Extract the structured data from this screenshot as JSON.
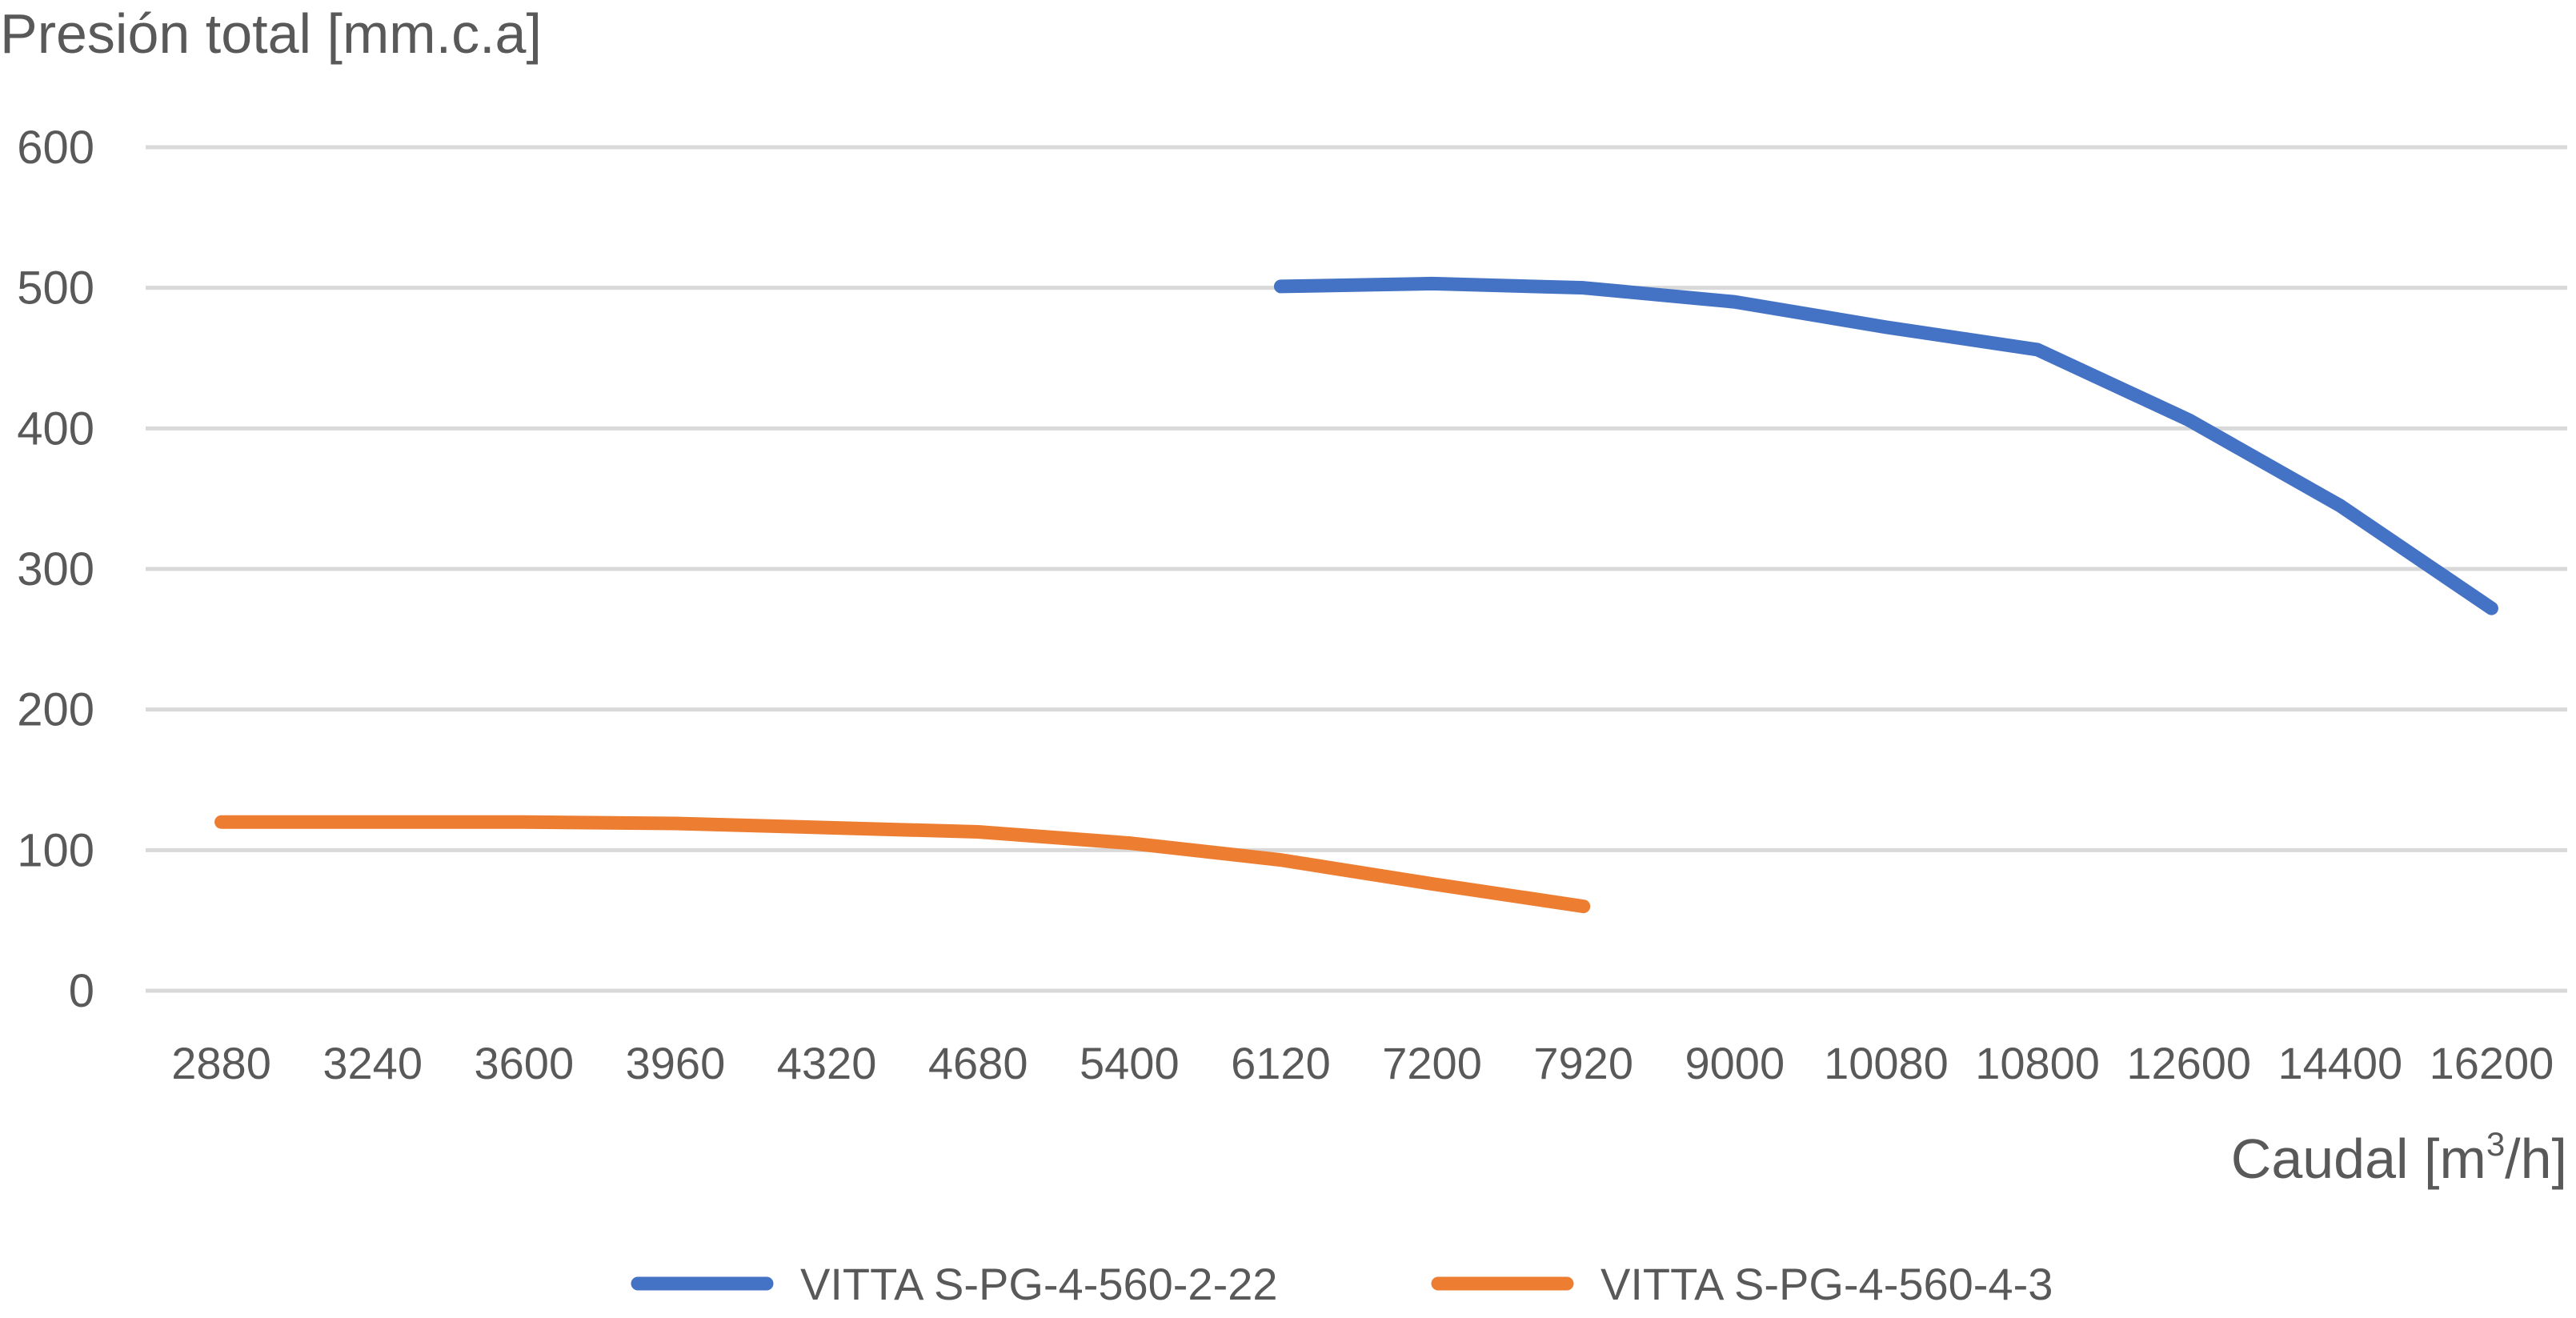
{
  "chart_data": {
    "type": "line",
    "ylabel": "Presión total [mm.c.a]",
    "xlabel_main": "Caudal [m",
    "xlabel_sup": "3",
    "xlabel_end": "/h]",
    "categories": [
      "2880",
      "3240",
      "3600",
      "3960",
      "4320",
      "4680",
      "5400",
      "6120",
      "7200",
      "7920",
      "9000",
      "10080",
      "10800",
      "12600",
      "14400",
      "16200"
    ],
    "yticks": [
      "0",
      "100",
      "200",
      "300",
      "400",
      "500",
      "600"
    ],
    "ylim": [
      0,
      600
    ],
    "grid": true,
    "legend_position": "bottom",
    "series": [
      {
        "name": "VITTA S-PG-4-560-2-22",
        "color": "#4472c4",
        "values": [
          null,
          null,
          null,
          null,
          null,
          null,
          null,
          501,
          503,
          500,
          490,
          472,
          456,
          406,
          345,
          272
        ]
      },
      {
        "name": "VITTA S-PG-4-560-4-3",
        "color": "#ed7d31",
        "values": [
          120,
          120,
          120,
          119,
          116,
          113,
          105,
          93,
          76,
          60,
          null,
          null,
          null,
          null,
          null,
          null
        ]
      }
    ]
  }
}
